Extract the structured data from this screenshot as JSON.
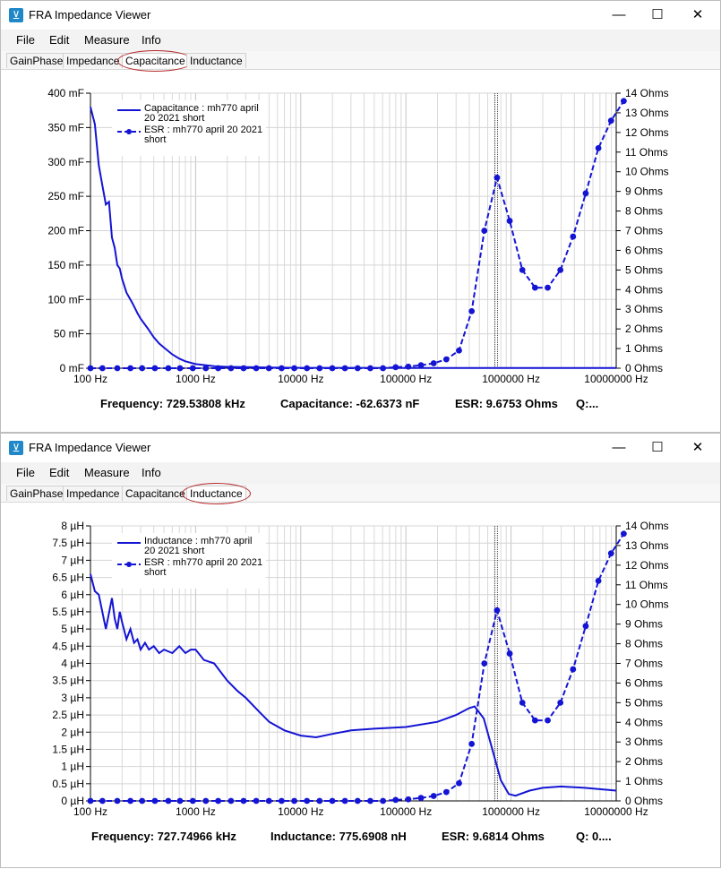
{
  "windows": [
    {
      "title": "FRA Impedance Viewer",
      "menu": [
        "File",
        "Edit",
        "Measure",
        "Info"
      ],
      "tabs": [
        "GainPhase",
        "Impedance",
        "Capacitance",
        "Inductance"
      ],
      "active_tab": 2,
      "status": {
        "frequency": "Frequency: 729.53808 kHz",
        "value": "Capacitance: -62.6373 nF",
        "esr": "ESR: 9.6753 Ohms",
        "q": "Q:..."
      }
    },
    {
      "title": "FRA Impedance Viewer",
      "menu": [
        "File",
        "Edit",
        "Measure",
        "Info"
      ],
      "tabs": [
        "GainPhase",
        "Impedance",
        "Capacitance",
        "Inductance"
      ],
      "active_tab": 3,
      "status": {
        "frequency": "Frequency: 727.74966 kHz",
        "value": "Inductance: 775.6908 nH",
        "esr": "ESR: 9.6814 Ohms",
        "q": "Q: 0...."
      }
    }
  ],
  "chart_data": [
    {
      "type": "line",
      "xscale": "log",
      "xlim": [
        100,
        10000000
      ],
      "x_ticks": [
        "100 Hz",
        "1000 Hz",
        "10000 Hz",
        "100000 Hz",
        "1000000 Hz",
        "10000000 Hz"
      ],
      "y_left": {
        "unit": "mF",
        "lim": [
          0,
          400
        ],
        "ticks": [
          "0 mF",
          "50 mF",
          "100 mF",
          "150 mF",
          "200 mF",
          "250 mF",
          "300 mF",
          "350 mF",
          "400 mF"
        ]
      },
      "y_right": {
        "unit": "Ohms",
        "lim": [
          0,
          14
        ],
        "ticks": [
          "0 Ohms",
          "1 Ohms",
          "2 Ohms",
          "3 Ohms",
          "4 Ohms",
          "5 Ohms",
          "6 Ohms",
          "7 Ohms",
          "8 Ohms",
          "9 Ohms",
          "10 Ohms",
          "11 Ohms",
          "12 Ohms",
          "13 Ohms",
          "14 Ohms"
        ]
      },
      "cursor_x": 729538,
      "series": [
        {
          "name": "Capacitance : mh770 april 20 2021 short",
          "legend_lines": [
            "Capacitance : mh770 april",
            "20 2021 short"
          ],
          "axis": "left",
          "color": "#1414d4",
          "style": "solid",
          "x": [
            100,
            110,
            120,
            130,
            140,
            150,
            160,
            170,
            180,
            190,
            200,
            220,
            250,
            280,
            300,
            350,
            400,
            450,
            500,
            600,
            700,
            800,
            1000,
            1500,
            2000,
            3000,
            5000,
            10000,
            100000,
            10000000
          ],
          "y": [
            380,
            355,
            295,
            265,
            238,
            242,
            190,
            175,
            150,
            145,
            130,
            110,
            95,
            80,
            72,
            58,
            45,
            36,
            30,
            20,
            14,
            10,
            6,
            3,
            2,
            1.5,
            1,
            0.5,
            0.3,
            0.2
          ]
        },
        {
          "name": "ESR : mh770 april 20 2021 short",
          "legend_lines": [
            "ESR : mh770 april 20 2021",
            "short"
          ],
          "axis": "right",
          "color": "#1414d4",
          "style": "dashed-markers",
          "x": [
            100,
            130,
            180,
            240,
            310,
            410,
            550,
            710,
            940,
            1250,
            1640,
            2170,
            2860,
            3770,
            4980,
            6570,
            8680,
            11450,
            15110,
            19950,
            26330,
            34750,
            45860,
            60530,
            79890,
            105440,
            139150,
            183650,
            242380,
            319900,
            422200,
            557210,
            735400,
            970570,
            1280950,
            1690580,
            2231200,
            2944730,
            3886420,
            5129250,
            6769490,
            8934290,
            11791400
          ],
          "y": [
            0,
            0,
            0,
            0,
            0,
            0,
            0,
            0,
            0,
            0,
            0,
            0,
            0,
            0,
            0,
            0,
            0,
            0,
            0,
            0,
            0,
            0,
            0,
            0,
            0.05,
            0.08,
            0.15,
            0.25,
            0.45,
            0.9,
            2.9,
            7.0,
            9.7,
            7.5,
            5.0,
            4.1,
            4.1,
            5.0,
            6.7,
            8.9,
            11.2,
            12.6,
            13.6
          ]
        }
      ]
    },
    {
      "type": "line",
      "xscale": "log",
      "xlim": [
        100,
        10000000
      ],
      "x_ticks": [
        "100 Hz",
        "1000 Hz",
        "10000 Hz",
        "100000 Hz",
        "1000000 Hz",
        "10000000 Hz"
      ],
      "y_left": {
        "unit": "µH",
        "lim": [
          0,
          8
        ],
        "ticks": [
          "0 µH",
          "0.5 µH",
          "1 µH",
          "1.5 µH",
          "2 µH",
          "2.5 µH",
          "3 µH",
          "3.5 µH",
          "4 µH",
          "4.5 µH",
          "5 µH",
          "5.5 µH",
          "6 µH",
          "6.5 µH",
          "7 µH",
          "7.5 µH",
          "8 µH"
        ]
      },
      "y_right": {
        "unit": "Ohms",
        "lim": [
          0,
          14
        ],
        "ticks": [
          "0 Ohms",
          "1 Ohms",
          "2 Ohms",
          "3 Ohms",
          "4 Ohms",
          "5 Ohms",
          "6 Ohms",
          "7 Ohms",
          "8 Ohms",
          "9 Ohms",
          "10 Ohms",
          "11 Ohms",
          "12 Ohms",
          "13 Ohms",
          "14 Ohms"
        ]
      },
      "cursor_x": 727750,
      "series": [
        {
          "name": "Inductance : mh770 april 20 2021 short",
          "legend_lines": [
            "Inductance : mh770 april",
            "20 2021 short"
          ],
          "axis": "left",
          "color": "#1414d4",
          "style": "solid",
          "x": [
            100,
            110,
            120,
            140,
            160,
            170,
            180,
            190,
            200,
            220,
            240,
            260,
            280,
            300,
            330,
            360,
            400,
            450,
            500,
            600,
            700,
            800,
            900,
            1000,
            1200,
            1500,
            2000,
            2500,
            3000,
            4000,
            5000,
            7000,
            10000,
            14000,
            20000,
            30000,
            50000,
            100000,
            200000,
            300000,
            400000,
            450000,
            550000,
            650000,
            800000,
            950000,
            1100000,
            1500000,
            2000000,
            3000000,
            5000000,
            10000000
          ],
          "y": [
            6.6,
            6.1,
            6.0,
            5.0,
            5.9,
            5.3,
            5.0,
            5.5,
            5.2,
            4.7,
            5.0,
            4.6,
            4.7,
            4.4,
            4.6,
            4.4,
            4.5,
            4.3,
            4.4,
            4.3,
            4.5,
            4.3,
            4.4,
            4.4,
            4.1,
            4.0,
            3.5,
            3.2,
            3.0,
            2.6,
            2.3,
            2.05,
            1.9,
            1.85,
            1.95,
            2.05,
            2.1,
            2.15,
            2.3,
            2.5,
            2.7,
            2.75,
            2.4,
            1.6,
            0.6,
            0.2,
            0.15,
            0.3,
            0.38,
            0.42,
            0.38,
            0.3
          ]
        },
        {
          "name": "ESR : mh770 april 20 2021 short",
          "legend_lines": [
            "ESR : mh770 april 20 2021",
            "short"
          ],
          "axis": "right",
          "color": "#1414d4",
          "style": "dashed-markers",
          "x": [
            100,
            130,
            180,
            240,
            310,
            410,
            550,
            710,
            940,
            1250,
            1640,
            2170,
            2860,
            3770,
            4980,
            6570,
            8680,
            11450,
            15110,
            19950,
            26330,
            34750,
            45860,
            60530,
            79890,
            105440,
            139150,
            183650,
            242380,
            319900,
            422200,
            557210,
            735400,
            970570,
            1280950,
            1690580,
            2231200,
            2944730,
            3886420,
            5129250,
            6769490,
            8934290,
            11791400
          ],
          "y": [
            0,
            0,
            0,
            0,
            0,
            0,
            0,
            0,
            0,
            0,
            0,
            0,
            0,
            0,
            0,
            0,
            0,
            0,
            0,
            0,
            0,
            0,
            0,
            0,
            0.05,
            0.08,
            0.15,
            0.25,
            0.45,
            0.9,
            2.9,
            7.0,
            9.7,
            7.5,
            5.0,
            4.1,
            4.1,
            5.0,
            6.7,
            8.9,
            11.2,
            12.6,
            13.6
          ]
        }
      ]
    }
  ]
}
